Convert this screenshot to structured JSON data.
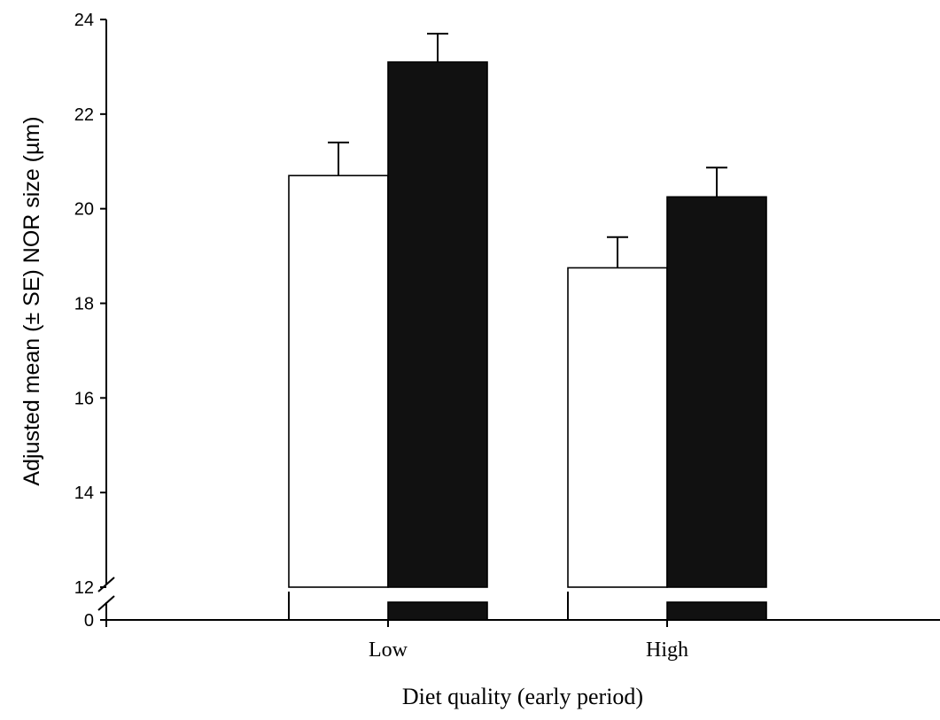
{
  "chart_data": {
    "type": "bar",
    "title": "",
    "xlabel": "Diet quality (early period)",
    "ylabel": "Adjusted mean (± SE) NOR size (µm)",
    "categories": [
      "Low",
      "High"
    ],
    "series": [
      {
        "values": [
          20.7,
          18.75
        ],
        "errors": [
          0.7,
          0.65
        ],
        "fill": "#ffffff"
      },
      {
        "values": [
          23.1,
          20.25
        ],
        "errors": [
          0.6,
          0.62
        ],
        "fill": "#111111"
      }
    ],
    "ylim": [
      12,
      24
    ],
    "yticks": [
      24,
      22,
      20,
      18,
      16,
      14,
      12
    ],
    "axis_break": {
      "lower_tick": "0",
      "upper_start": 12
    },
    "grid": false,
    "legend": "none"
  }
}
